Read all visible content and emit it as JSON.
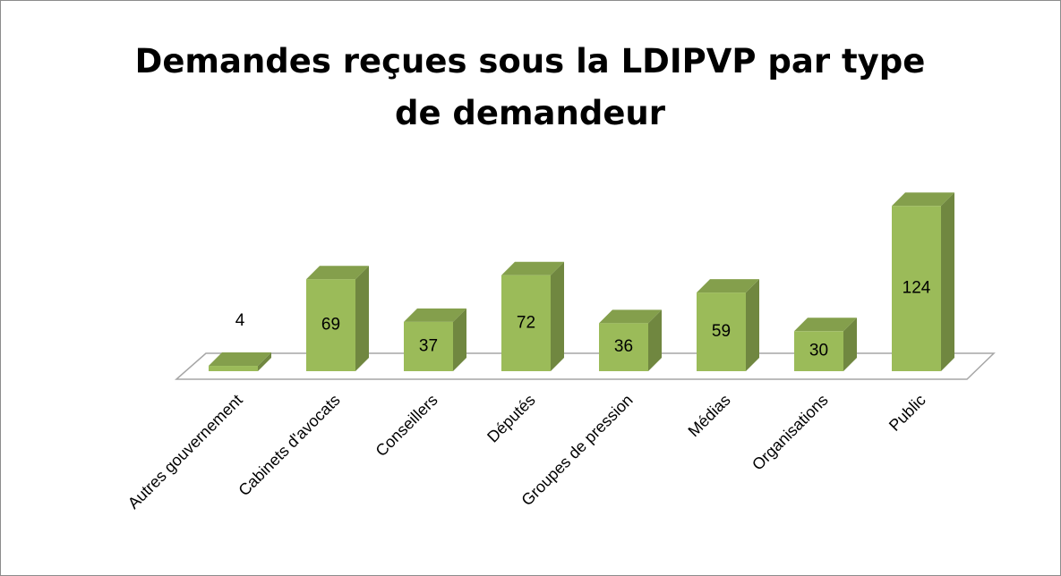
{
  "chart_data": {
    "type": "bar3d",
    "title": "Demandes reçues sous la LDIPVP par type de demandeur",
    "categories": [
      "Autres gouvernement",
      "Cabinets d'avocats",
      "Conseillers",
      "Députés",
      "Groupes de pression",
      "Médias",
      "Organisations",
      "Public"
    ],
    "values": [
      4,
      69,
      37,
      72,
      36,
      59,
      30,
      124
    ],
    "color": "#9bbb59"
  }
}
